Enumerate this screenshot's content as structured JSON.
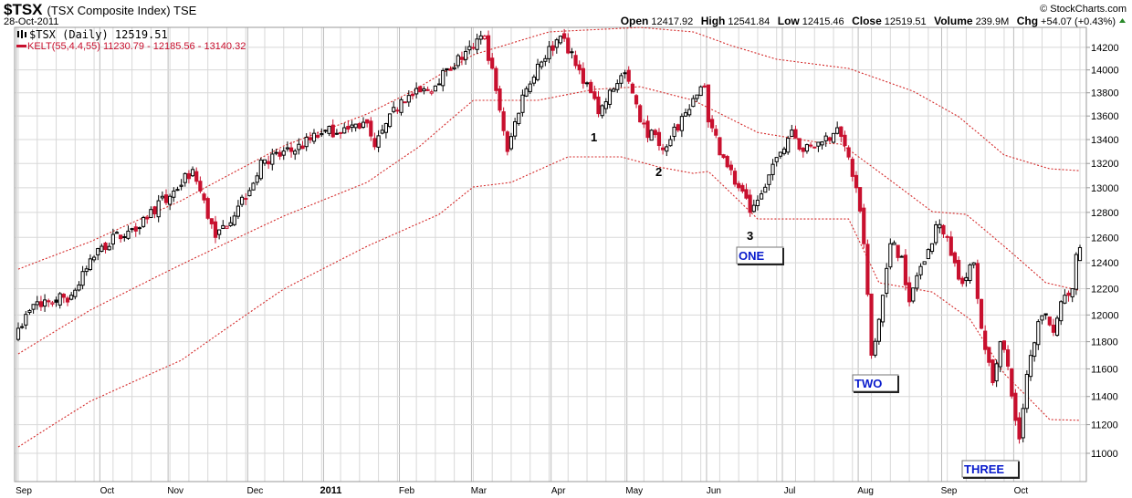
{
  "header": {
    "symbol": "$TSX",
    "name": "(TSX Composite Index) TSE",
    "date": "28-Oct-2011",
    "copyright": "© StockCharts.com",
    "open_label": "Open",
    "open": "12417.92",
    "high_label": "High",
    "high": "12541.84",
    "low_label": "Low",
    "low": "12415.46",
    "close_label": "Close",
    "close": "12519.51",
    "volume_label": "Volume",
    "volume": "239.9M",
    "chg_label": "Chg",
    "chg": "+54.07 (+0.43%)"
  },
  "legend": {
    "price": "$TSX (Daily) 12519.51",
    "kelt": "KELT(55,4.4,55) 11230.79 - 12185.56 - 13140.32"
  },
  "colors": {
    "up": "#000000",
    "down": "#c8102e",
    "band": "#d42a2a",
    "annotation": "#0a1ccc",
    "grid": "#d8d8d8"
  },
  "annotations": {
    "n1": "1",
    "n2": "2",
    "n3": "3",
    "one": "ONE",
    "two": "TWO",
    "three": "THREE"
  },
  "chart_data": {
    "type": "candlestick",
    "title": "$TSX (TSX Composite Index) TSE",
    "scale": "log",
    "ylim": [
      10800,
      14400
    ],
    "yticks": [
      11000,
      11200,
      11400,
      11600,
      11800,
      12000,
      12200,
      12400,
      12600,
      12800,
      13000,
      13200,
      13400,
      13600,
      13800,
      14000,
      14200
    ],
    "trading_days": 281,
    "xticks": [
      {
        "day": 0,
        "label": "Sep"
      },
      {
        "day": 22,
        "label": "Oct"
      },
      {
        "day": 40,
        "label": "Nov"
      },
      {
        "day": 61,
        "label": "Dec"
      },
      {
        "day": 81,
        "label": "2011",
        "bold": true
      },
      {
        "day": 101,
        "label": "Feb"
      },
      {
        "day": 120,
        "label": "Mar"
      },
      {
        "day": 141,
        "label": "Apr"
      },
      {
        "day": 161,
        "label": "May"
      },
      {
        "day": 182,
        "label": "Jun"
      },
      {
        "day": 202,
        "label": "Jul"
      },
      {
        "day": 222,
        "label": "Aug"
      },
      {
        "day": 244,
        "label": "Sep"
      },
      {
        "day": 263,
        "label": "Oct"
      }
    ],
    "close_anchors": [
      [
        0,
        11900
      ],
      [
        5,
        12100
      ],
      [
        8,
        12100
      ],
      [
        14,
        12150
      ],
      [
        22,
        12530
      ],
      [
        29,
        12650
      ],
      [
        40,
        12930
      ],
      [
        46,
        13150
      ],
      [
        52,
        12600
      ],
      [
        58,
        12850
      ],
      [
        65,
        13230
      ],
      [
        72,
        13300
      ],
      [
        80,
        13450
      ],
      [
        86,
        13500
      ],
      [
        92,
        13540
      ],
      [
        94,
        13340
      ],
      [
        101,
        13740
      ],
      [
        108,
        13820
      ],
      [
        113,
        14000
      ],
      [
        120,
        14200
      ],
      [
        123,
        14300
      ],
      [
        127,
        13650
      ],
      [
        129,
        13300
      ],
      [
        133,
        13780
      ],
      [
        137,
        14050
      ],
      [
        143,
        14300
      ],
      [
        148,
        14000
      ],
      [
        151,
        13800
      ],
      [
        153,
        13620
      ],
      [
        159,
        13950
      ],
      [
        161,
        13900
      ],
      [
        164,
        13550
      ],
      [
        169,
        13350
      ],
      [
        172,
        13400
      ],
      [
        178,
        13750
      ],
      [
        181,
        13850
      ],
      [
        182,
        13550
      ],
      [
        186,
        13250
      ],
      [
        190,
        13000
      ],
      [
        193,
        12800
      ],
      [
        196,
        12950
      ],
      [
        200,
        13250
      ],
      [
        204,
        13480
      ],
      [
        207,
        13300
      ],
      [
        212,
        13380
      ],
      [
        216,
        13500
      ],
      [
        218,
        13350
      ],
      [
        221,
        13000
      ],
      [
        223,
        12550
      ],
      [
        225,
        11700
      ],
      [
        228,
        12150
      ],
      [
        230,
        12550
      ],
      [
        233,
        12450
      ],
      [
        235,
        12100
      ],
      [
        237,
        12300
      ],
      [
        241,
        12550
      ],
      [
        242,
        12700
      ],
      [
        245,
        12600
      ],
      [
        247,
        12400
      ],
      [
        249,
        12240
      ],
      [
        252,
        12400
      ],
      [
        254,
        11900
      ],
      [
        257,
        11500
      ],
      [
        259,
        11800
      ],
      [
        261,
        11620
      ],
      [
        263,
        11230
      ],
      [
        264,
        11100
      ],
      [
        266,
        11560
      ],
      [
        269,
        11950
      ],
      [
        271,
        12000
      ],
      [
        273,
        11870
      ],
      [
        276,
        12150
      ],
      [
        278,
        12200
      ],
      [
        279,
        12465.44
      ],
      [
        280,
        12519.51
      ]
    ],
    "last_bar": {
      "open": 12417.92,
      "high": 12541.84,
      "low": 12415.46,
      "close": 12519.51
    },
    "series": [
      {
        "name": "KELT upper",
        "values": [
          [
            0,
            12351
          ],
          [
            19,
            12566
          ],
          [
            43,
            12895
          ],
          [
            70,
            13346
          ],
          [
            92,
            13617
          ],
          [
            104,
            13814
          ],
          [
            120,
            14134
          ],
          [
            140,
            14339
          ],
          [
            164,
            14379
          ],
          [
            178,
            14339
          ],
          [
            188,
            14216
          ],
          [
            200,
            14094
          ],
          [
            219,
            14013
          ],
          [
            236,
            13814
          ],
          [
            248,
            13594
          ],
          [
            260,
            13270
          ],
          [
            272,
            13156
          ],
          [
            280,
            13140.32
          ]
        ]
      },
      {
        "name": "KELT middle",
        "values": [
          [
            0,
            11710
          ],
          [
            19,
            12037
          ],
          [
            43,
            12387
          ],
          [
            70,
            12770
          ],
          [
            92,
            13044
          ],
          [
            106,
            13346
          ],
          [
            120,
            13735
          ],
          [
            137,
            13735
          ],
          [
            152,
            13830
          ],
          [
            164,
            13853
          ],
          [
            178,
            13735
          ],
          [
            195,
            13460
          ],
          [
            212,
            13370
          ],
          [
            217,
            13362
          ],
          [
            241,
            12806
          ],
          [
            250,
            12784
          ],
          [
            260,
            12530
          ],
          [
            271,
            12246
          ],
          [
            280,
            12185.56
          ]
        ]
      },
      {
        "name": "KELT lower",
        "values": [
          [
            0,
            11044
          ],
          [
            19,
            11366
          ],
          [
            43,
            11663
          ],
          [
            70,
            12197
          ],
          [
            92,
            12530
          ],
          [
            111,
            12784
          ],
          [
            120,
            13006
          ],
          [
            130,
            13044
          ],
          [
            145,
            13255
          ],
          [
            159,
            13255
          ],
          [
            169,
            13170
          ],
          [
            178,
            13118
          ],
          [
            182,
            13134
          ],
          [
            195,
            12747
          ],
          [
            219,
            12747
          ],
          [
            227,
            12246
          ],
          [
            241,
            12175
          ],
          [
            251,
            11968
          ],
          [
            260,
            11566
          ],
          [
            272,
            11236
          ],
          [
            280,
            11230.79
          ]
        ]
      }
    ]
  }
}
